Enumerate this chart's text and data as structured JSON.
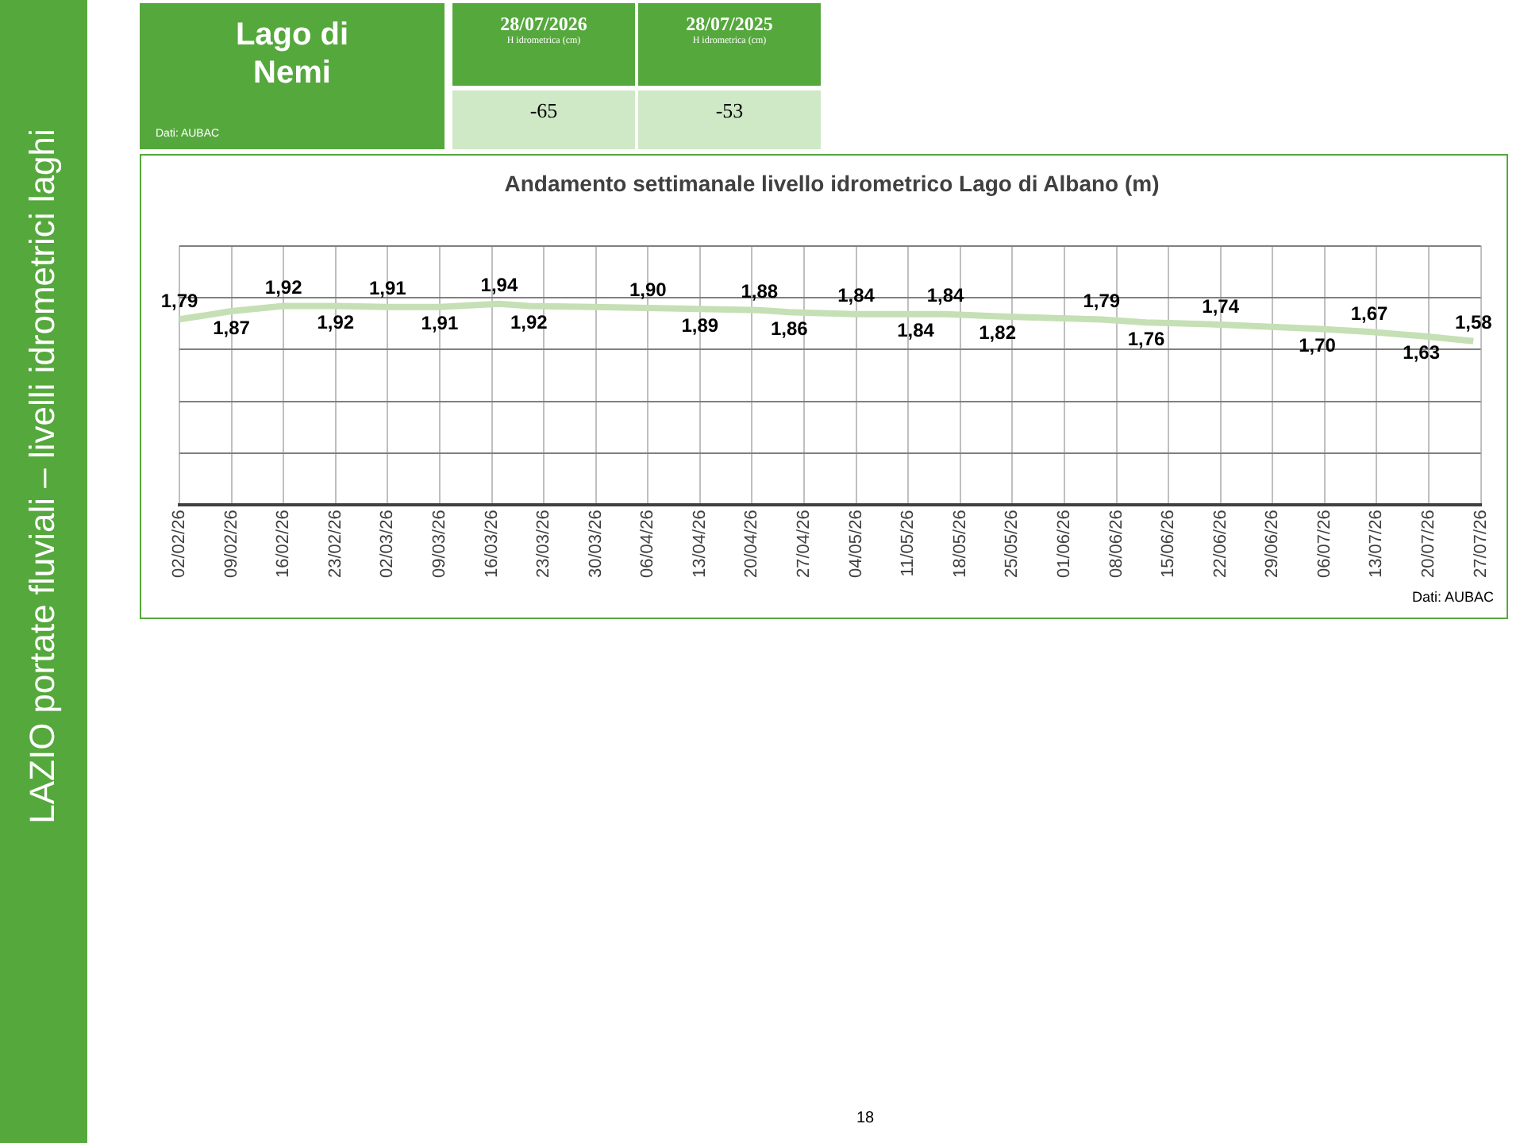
{
  "chart_data": [
    {
      "type": "other",
      "title": "Lago di Nemi",
      "categories": [
        "28/07/2026",
        "28/07/2025"
      ],
      "ylabel": "H idrometrica (cm)",
      "values": [
        -65,
        -53
      ],
      "data_labels": true,
      "annotations": [
        "Dati: AUBAC",
        "LAZIO portate fluviali – livelli idrometrici laghi",
        "18"
      ]
    },
    {
      "type": "line",
      "title": "Andamento settimanale livello idrometrico Lago di Albano (m)",
      "x": [
        "2026-02-02",
        "2026-02-09",
        "2026-02-16",
        "2026-02-23",
        "2026-03-02",
        "2026-03-09",
        "2026-03-17",
        "2026-03-21",
        "2026-04-06",
        "2026-04-13",
        "2026-04-21",
        "2026-04-25",
        "2026-05-04",
        "2026-05-12",
        "2026-05-16",
        "2026-05-23",
        "2026-06-06",
        "2026-06-12",
        "2026-06-22",
        "2026-07-05",
        "2026-07-12",
        "2026-07-19",
        "2026-07-26"
      ],
      "series": [
        {
          "color": "#c5e0b4",
          "values": [
            1.79,
            1.87,
            1.92,
            1.92,
            1.91,
            1.91,
            1.94,
            1.92,
            1.9,
            1.89,
            1.88,
            1.86,
            1.84,
            1.84,
            1.84,
            1.82,
            1.79,
            1.76,
            1.74,
            1.7,
            1.67,
            1.63,
            1.58
          ],
          "value_labels": [
            "1,79",
            "1,87",
            "1,92",
            "1,92",
            "1,91",
            "1,91",
            "1,94",
            "1,92",
            "1,90",
            "1,89",
            "1,88",
            "1,86",
            "1,84",
            "1,84",
            "1,84",
            "1,82",
            "1,79",
            "1,76",
            "1,74",
            "1,70",
            "1,67",
            "1,63",
            "1,58"
          ]
        }
      ],
      "marker": "none",
      "line_style": "solid",
      "grid": true,
      "legend": false,
      "tick_labels": "x",
      "xlim": [
        "2026-02-02",
        "2026-07-27"
      ],
      "xticks": [
        {
          "value": "2026-02-02",
          "label": "02/02/26"
        },
        {
          "value": "2026-02-09",
          "label": "09/02/26"
        },
        {
          "value": "2026-02-16",
          "label": "16/02/26"
        },
        {
          "value": "2026-02-23",
          "label": "23/02/26"
        },
        {
          "value": "2026-03-02",
          "label": "02/03/26"
        },
        {
          "value": "2026-03-09",
          "label": "09/03/26"
        },
        {
          "value": "2026-03-16",
          "label": "16/03/26"
        },
        {
          "value": "2026-03-23",
          "label": "23/03/26"
        },
        {
          "value": "2026-03-30",
          "label": "30/03/26"
        },
        {
          "value": "2026-04-06",
          "label": "06/04/26"
        },
        {
          "value": "2026-04-13",
          "label": "13/04/26"
        },
        {
          "value": "2026-04-20",
          "label": "20/04/26"
        },
        {
          "value": "2026-04-27",
          "label": "27/04/26"
        },
        {
          "value": "2026-05-04",
          "label": "04/05/26"
        },
        {
          "value": "2026-05-11",
          "label": "11/05/26"
        },
        {
          "value": "2026-05-18",
          "label": "18/05/26"
        },
        {
          "value": "2026-05-25",
          "label": "25/05/26"
        },
        {
          "value": "2026-06-01",
          "label": "01/06/26"
        },
        {
          "value": "2026-06-08",
          "label": "08/06/26"
        },
        {
          "value": "2026-06-15",
          "label": "15/06/26"
        },
        {
          "value": "2026-06-22",
          "label": "22/06/26"
        },
        {
          "value": "2026-06-29",
          "label": "29/06/26"
        },
        {
          "value": "2026-07-06",
          "label": "06/07/26"
        },
        {
          "value": "2026-07-13",
          "label": "13/07/26"
        },
        {
          "value": "2026-07-20",
          "label": "20/07/26"
        },
        {
          "value": "2026-07-27",
          "label": "27/07/26"
        }
      ],
      "ylim": [
        0,
        2.5
      ],
      "yticks": [
        {
          "value": 0,
          "label": null
        },
        {
          "value": 0.5,
          "label": null
        },
        {
          "value": 1,
          "label": null
        },
        {
          "value": 1.5,
          "label": null
        },
        {
          "value": 2,
          "label": null
        },
        {
          "value": 2.5,
          "label": null
        }
      ],
      "annotations": [
        "Dati: AUBAC"
      ]
    }
  ]
}
